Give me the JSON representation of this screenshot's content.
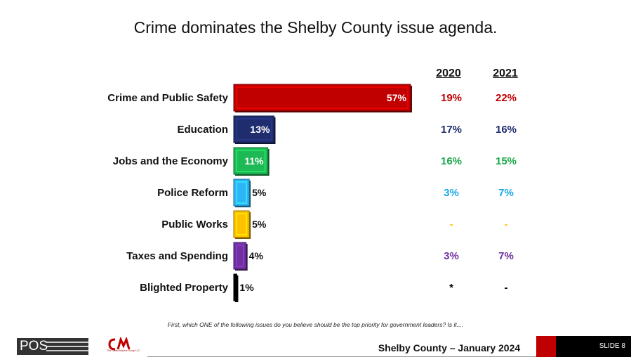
{
  "title": "Crime dominates the Shelby County issue agenda.",
  "question": "First, which ONE of the following issues do you believe should be the top priority for government leaders? Is it....",
  "footer": {
    "logo_text": "POS",
    "partner_logo_text": "The Carter Malone Group LLC",
    "center_text": "Shelby County – January 2024",
    "slide": "SLIDE 8"
  },
  "chart_data": {
    "type": "bar",
    "orientation": "horizontal",
    "title": "Crime dominates the Shelby County issue agenda.",
    "categories": [
      "Crime and Public Safety",
      "Education",
      "Jobs and the Economy",
      "Police Reform",
      "Public Works",
      "Taxes and Spending",
      "Blighted Property"
    ],
    "values": [
      57,
      13,
      11,
      5,
      5,
      4,
      1
    ],
    "value_labels": [
      "57%",
      "13%",
      "11%",
      "5%",
      "5%",
      "4%",
      "1%"
    ],
    "colors": [
      "#c00000",
      "#1f2d6e",
      "#1db954",
      "#2db6f5",
      "#ffc000",
      "#7030a0",
      "#000000"
    ],
    "comparison_years": [
      "2020",
      "2021"
    ],
    "comparison": [
      [
        "19%",
        "22%"
      ],
      [
        "17%",
        "16%"
      ],
      [
        "16%",
        "15%"
      ],
      [
        "3%",
        "7%"
      ],
      [
        "-",
        "-"
      ],
      [
        "3%",
        "7%"
      ],
      [
        "*",
        "-"
      ]
    ],
    "comparison_colors": [
      "#c00000",
      "#1f2d6e",
      "#1aa84a",
      "#1aa9e8",
      "#ffc000",
      "#7030a0",
      "#000000"
    ],
    "xlim": [
      0,
      60
    ],
    "grid": false,
    "legend": "none"
  }
}
